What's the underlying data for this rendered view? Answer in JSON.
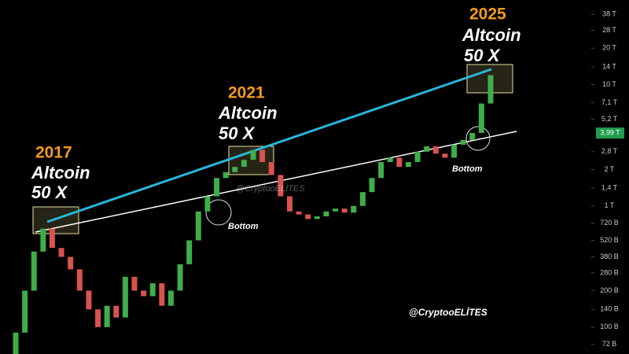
{
  "chart_data": {
    "type": "candlestick",
    "log_scale": true,
    "up_color": "#3fae49",
    "down_color": "#d9534f",
    "open": [
      60,
      90,
      200,
      420,
      650,
      450,
      380,
      300,
      200,
      140,
      100,
      150,
      120,
      260,
      200,
      180,
      230,
      150,
      200,
      330,
      520,
      900,
      1200,
      1700,
      1900,
      2100,
      2400,
      2900,
      2300,
      1800,
      1200,
      900,
      850,
      780,
      820,
      900,
      950,
      880,
      1000,
      1300,
      1700,
      2300,
      2500,
      2100,
      2300,
      2800,
      3100,
      2700,
      2500,
      3200,
      3500,
      4000,
      7000
    ],
    "close": [
      90,
      200,
      420,
      650,
      450,
      380,
      300,
      200,
      140,
      100,
      150,
      120,
      260,
      200,
      180,
      230,
      150,
      200,
      330,
      520,
      900,
      1200,
      1700,
      1900,
      2100,
      2400,
      2900,
      2300,
      1800,
      1200,
      900,
      850,
      780,
      820,
      900,
      950,
      880,
      1000,
      1300,
      1700,
      2300,
      2500,
      2100,
      2300,
      2800,
      3100,
      2700,
      2500,
      3200,
      3500,
      4000,
      7000,
      12000
    ],
    "ylim": [
      60,
      50000
    ],
    "yticks": [
      {
        "value": 38000,
        "label": "38 T"
      },
      {
        "value": 28000,
        "label": "28 T"
      },
      {
        "value": 20000,
        "label": "20 T"
      },
      {
        "value": 14000,
        "label": "14 T"
      },
      {
        "value": 10000,
        "label": "10 T"
      },
      {
        "value": 7100,
        "label": "7,1 T"
      },
      {
        "value": 5200,
        "label": "5,2 T"
      },
      {
        "value": 2800,
        "label": "2,8 T"
      },
      {
        "value": 2000,
        "label": "2 T"
      },
      {
        "value": 1400,
        "label": "1,4 T"
      },
      {
        "value": 1000,
        "label": "1 T"
      },
      {
        "value": 720,
        "label": "720 B"
      },
      {
        "value": 520,
        "label": "520 B"
      },
      {
        "value": 380,
        "label": "380 B"
      },
      {
        "value": 280,
        "label": "280 B"
      },
      {
        "value": 200,
        "label": "200 B"
      },
      {
        "value": 140,
        "label": "140 B"
      },
      {
        "value": 100,
        "label": "100 B"
      },
      {
        "value": 72,
        "label": "72 B"
      }
    ],
    "last_price": {
      "value": 3990,
      "label": "3,99 T",
      "color": "#1f9d4c"
    },
    "annotations": [
      {
        "year": "2017",
        "label": "Altcoin",
        "multiple": "50 X"
      },
      {
        "year": "2021",
        "label": "Altcoin",
        "multiple": "50 X"
      },
      {
        "year": "2025",
        "label": "Altcoin",
        "multiple": "50 X"
      }
    ],
    "bottoms": [
      "Bottom",
      "Bottom"
    ],
    "watermarks": [
      "@CryptooELİTES",
      "@CryptooELİTES"
    ]
  }
}
